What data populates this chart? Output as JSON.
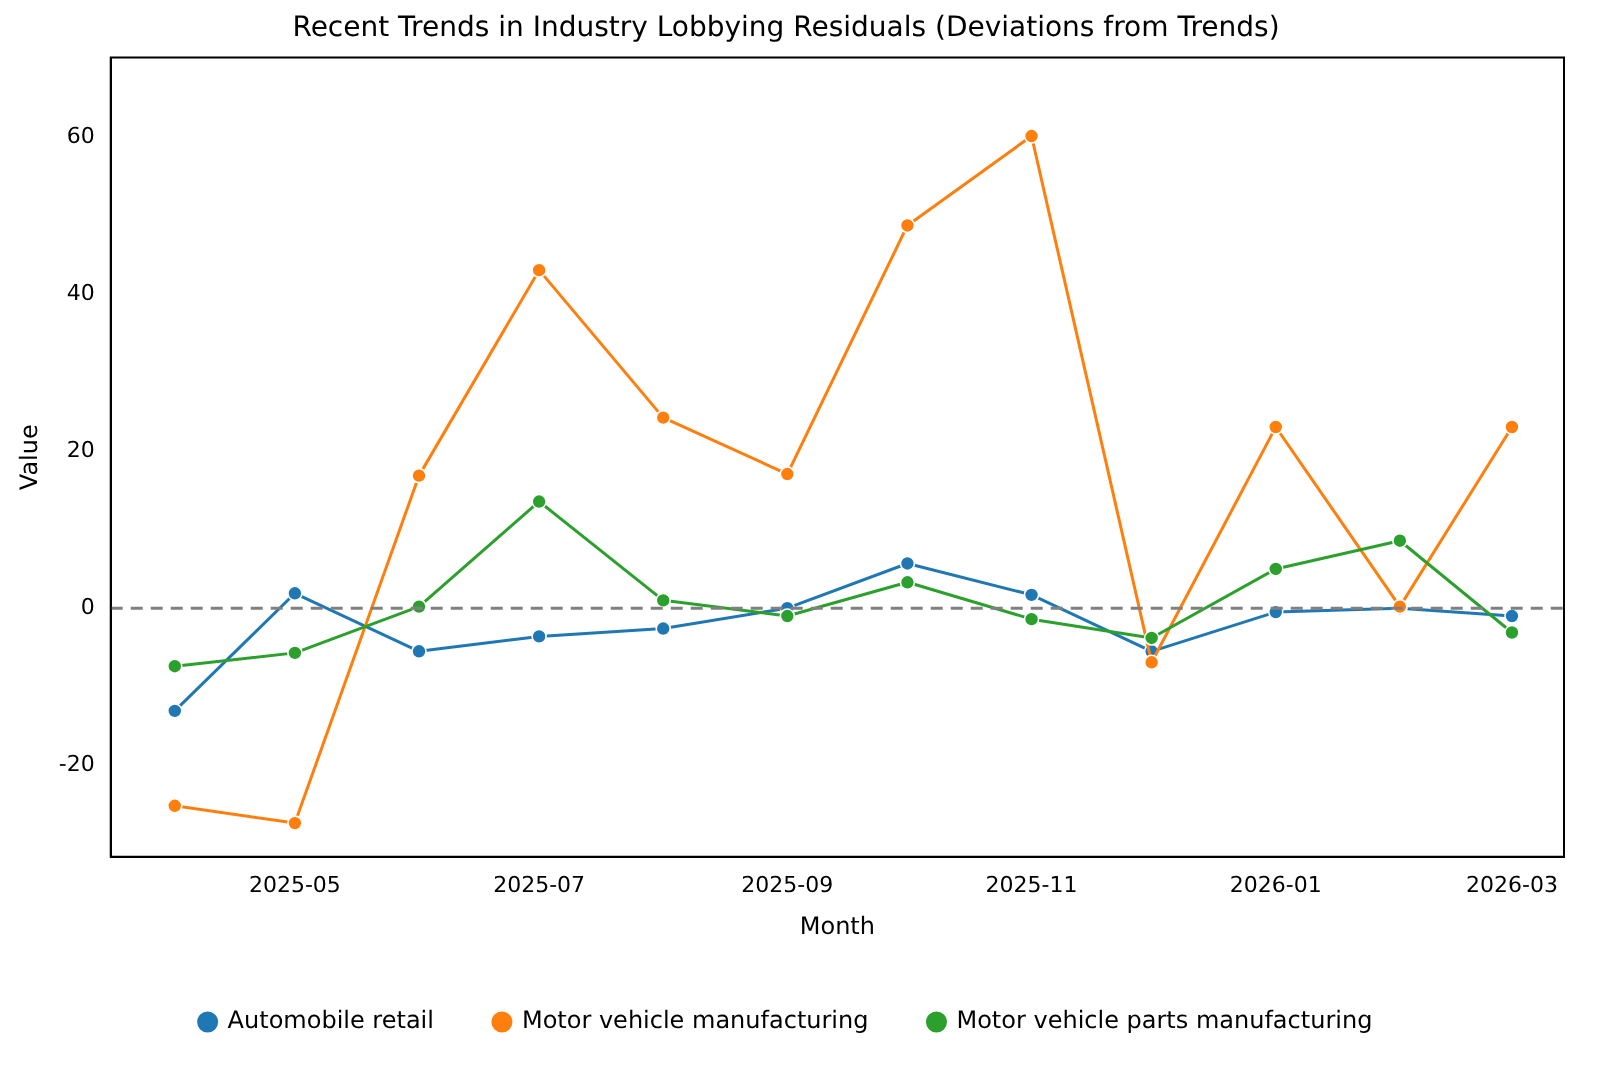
{
  "chart_data": {
    "type": "line",
    "title": "Recent Trends in Industry Lobbying Residuals (Deviations from Trends)",
    "xlabel": "Month",
    "ylabel": "Value",
    "x": [
      "2025-04",
      "2025-05",
      "2025-06",
      "2025-07",
      "2025-08",
      "2025-09",
      "2025-10",
      "2025-11",
      "2025-12",
      "2026-01",
      "2026-02",
      "2026-03"
    ],
    "series": [
      {
        "name": "Automobile retail",
        "color": "#1f77b4",
        "values": [
          -13.1,
          1.9,
          -5.5,
          -3.6,
          -2.6,
          0,
          5.7,
          1.7,
          -5.5,
          -0.5,
          0,
          -1
        ]
      },
      {
        "name": "Motor vehicle manufacturing",
        "color": "#ff7f0e",
        "values": [
          -25.2,
          -27.4,
          16.9,
          43.1,
          24.3,
          17.1,
          48.8,
          60.2,
          -6.9,
          23.1,
          0.2,
          23.1
        ]
      },
      {
        "name": "Motor vehicle parts manufacturing",
        "color": "#2ca02c",
        "values": [
          -7.4,
          -5.7,
          0.2,
          13.6,
          1,
          -1,
          3.3,
          -1.4,
          -3.8,
          5,
          8.6,
          -3.1
        ]
      }
    ],
    "xlim": [
      "2025-03-16",
      "2026-03-14"
    ],
    "xticks": [
      "2025-05",
      "2025-07",
      "2025-09",
      "2025-11",
      "2026-01",
      "2026-03"
    ],
    "ylim": [
      -31.7,
      70.2
    ],
    "yticks": [
      -20,
      0,
      20,
      40,
      60
    ],
    "ref_lines": [
      {
        "axis": "y",
        "value": 0,
        "color": "#808080",
        "line_style": "dashed"
      }
    ],
    "grid": false,
    "legend": "bottom",
    "marker": "circle",
    "line_style": "solid"
  }
}
